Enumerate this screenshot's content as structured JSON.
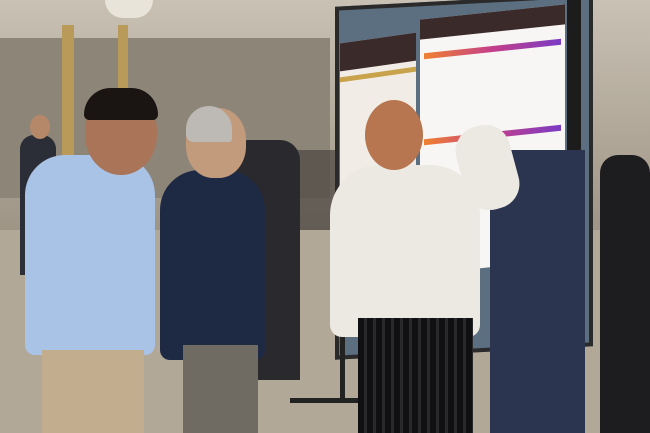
{
  "scene": {
    "type": "photo",
    "colors": {
      "wall": "#a89e90",
      "floor": "#b3a999",
      "board": "#5b6f80",
      "poster_header": "#3a2a2a",
      "poster_accent": "#c43f8a",
      "sweater": "#ece8e2",
      "shirt_blue": "#a9c3e6",
      "blazer": "#1e2a44"
    }
  }
}
